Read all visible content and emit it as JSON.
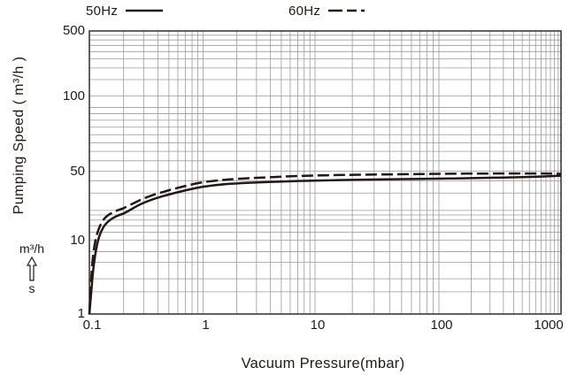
{
  "legend": {
    "items": [
      {
        "label": "50Hz",
        "line_style": "solid"
      },
      {
        "label": "60Hz",
        "line_style": "long-dash"
      }
    ]
  },
  "x_axis": {
    "title": "Vacuum Pressure(mbar)"
  },
  "y_axis": {
    "title": "Pumping Speed ( m³/h )"
  },
  "unit_note": {
    "numerator": "m³/h",
    "arrow": "up-arrow",
    "denominator": "s"
  },
  "colors": {
    "curve": "#231815",
    "text": "#231815",
    "grid": "#9a9a9a",
    "border": "#3a3a3a",
    "background": "#ffffff"
  },
  "chart_data": {
    "type": "line",
    "title": "",
    "xlabel": "Vacuum Pressure(mbar)",
    "ylabel": "Pumping Speed ( m³/h )",
    "x_scale": "log",
    "y_scale": "log",
    "xlim": [
      0.1,
      1400
    ],
    "ylim": [
      1,
      500
    ],
    "grid": true,
    "legend_position": "top",
    "x_ticks": [
      "0.1",
      "1",
      "10",
      "100",
      "1000"
    ],
    "y_ticks": [
      "500",
      "100",
      "50",
      "10",
      "1"
    ],
    "x_tick_values": [
      0.1,
      1,
      10,
      100,
      1000
    ],
    "y_tick_values": [
      500,
      100,
      50,
      10,
      1
    ],
    "x_minor_ticks": [
      0.2,
      0.3,
      0.4,
      0.5,
      0.6,
      0.7,
      0.8,
      0.9,
      2,
      3,
      4,
      5,
      6,
      7,
      8,
      9,
      20,
      30,
      40,
      50,
      60,
      70,
      80,
      90,
      200,
      300,
      400,
      500,
      600,
      700,
      800,
      900,
      1100,
      1200,
      1300
    ],
    "y_minor_ticks": [
      2,
      3,
      5,
      7,
      12,
      14,
      16,
      18,
      20,
      30,
      40,
      55,
      60,
      65,
      70,
      75,
      80,
      85,
      90,
      150,
      200,
      250,
      300,
      350,
      400,
      450
    ],
    "series": [
      {
        "name": "50Hz",
        "line_style": "solid",
        "color": "#231815",
        "points": [
          [
            0.1,
            1
          ],
          [
            0.104,
            2
          ],
          [
            0.108,
            4
          ],
          [
            0.112,
            6
          ],
          [
            0.117,
            9
          ],
          [
            0.125,
            12
          ],
          [
            0.14,
            15
          ],
          [
            0.17,
            17.5
          ],
          [
            0.2,
            18.5
          ],
          [
            0.25,
            21.5
          ],
          [
            0.3,
            24
          ],
          [
            0.4,
            27
          ],
          [
            0.5,
            29
          ],
          [
            0.7,
            32
          ],
          [
            1,
            35
          ],
          [
            1.5,
            36.8
          ],
          [
            2,
            37.6
          ],
          [
            3,
            38.5
          ],
          [
            5,
            39.3
          ],
          [
            10,
            40.2
          ],
          [
            20,
            40.8
          ],
          [
            50,
            41.5
          ],
          [
            100,
            42
          ],
          [
            200,
            42.5
          ],
          [
            500,
            43.3
          ],
          [
            1000,
            44.2
          ],
          [
            1380,
            45
          ]
        ]
      },
      {
        "name": "60Hz",
        "line_style": "long-dash",
        "color": "#231815",
        "points": [
          [
            0.1,
            1
          ],
          [
            0.103,
            2.5
          ],
          [
            0.106,
            5
          ],
          [
            0.11,
            8
          ],
          [
            0.115,
            11
          ],
          [
            0.125,
            14.5
          ],
          [
            0.14,
            17.5
          ],
          [
            0.17,
            19.8
          ],
          [
            0.2,
            21
          ],
          [
            0.25,
            24
          ],
          [
            0.3,
            26.5
          ],
          [
            0.4,
            29.8
          ],
          [
            0.5,
            32
          ],
          [
            0.7,
            35.5
          ],
          [
            1,
            38.8
          ],
          [
            1.5,
            40.8
          ],
          [
            2,
            41.8
          ],
          [
            3,
            42.8
          ],
          [
            5,
            44
          ],
          [
            10,
            45.2
          ],
          [
            20,
            45.9
          ],
          [
            50,
            46.5
          ],
          [
            100,
            47
          ],
          [
            300,
            47.3
          ],
          [
            700,
            47.4
          ],
          [
            1000,
            47.4
          ],
          [
            1380,
            47
          ]
        ]
      }
    ]
  }
}
